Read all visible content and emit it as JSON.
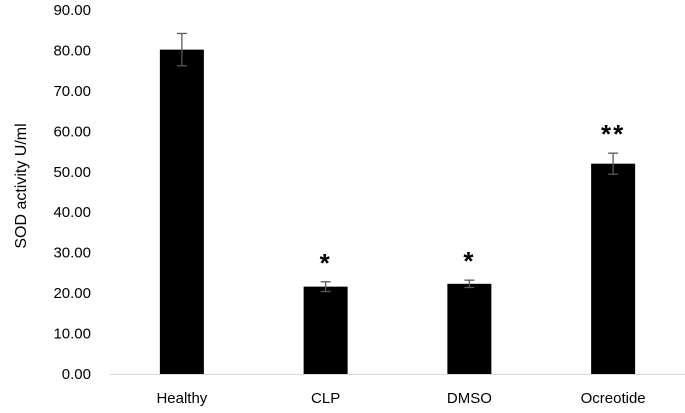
{
  "chart_data": {
    "type": "bar",
    "title": "",
    "xlabel": "",
    "ylabel": "SOD activity U/ml",
    "ylim": [
      0,
      90
    ],
    "ytick_step": 10,
    "ytick_labels": [
      "0.00",
      "10.00",
      "20.00",
      "30.00",
      "40.00",
      "50.00",
      "60.00",
      "70.00",
      "80.00",
      "90.00"
    ],
    "categories": [
      "Healthy",
      "CLP",
      "DMSO",
      "Ocreotide"
    ],
    "values": [
      80.2,
      21.6,
      22.3,
      52.0
    ],
    "errors": [
      4.0,
      1.2,
      0.9,
      2.6
    ],
    "annotations": [
      "",
      "*",
      "*",
      "**"
    ],
    "grid": false,
    "legend": "none",
    "bar_color": "#000000",
    "errorbar_color": "#595959",
    "axis_color": "#d9d9d9"
  }
}
